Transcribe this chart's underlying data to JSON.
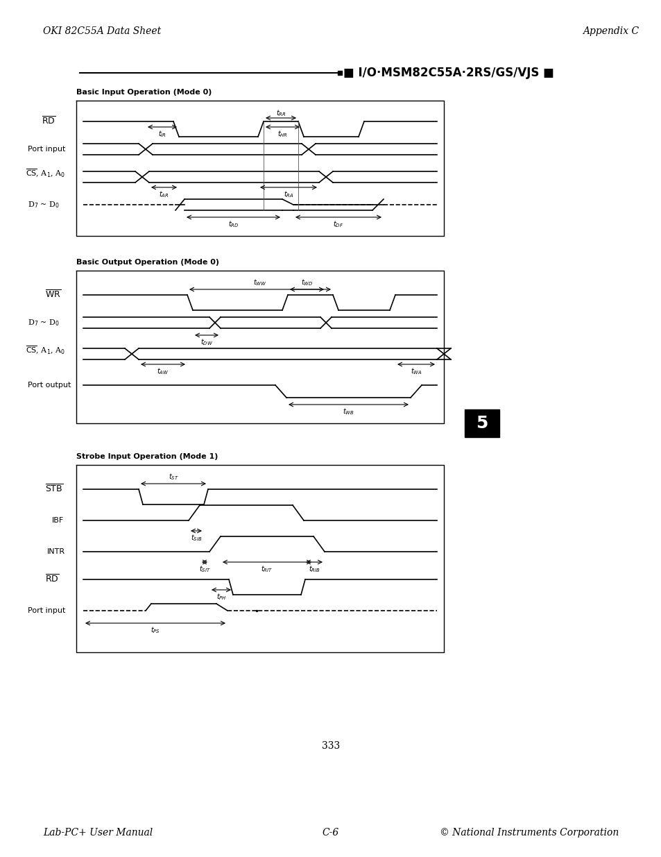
{
  "page_title_left": "OKI 82C55A Data Sheet",
  "page_title_right": "Appendix C",
  "header_line_text": "■ I/O·MSM82C55A·2RS/GS/VJS ■",
  "footer_left": "Lab-PC+ User Manual",
  "footer_center": "C-6",
  "footer_right": "© National Instruments Corporation",
  "page_number": "333",
  "diagram1_title": "Basic Input Operation (Mode 0)",
  "diagram2_title": "Basic Output Operation (Mode 0)",
  "diagram3_title": "Strobe Input Operation (Mode 1)",
  "bg_color": "#ffffff",
  "box_color": "#000000",
  "line_color": "#000000"
}
